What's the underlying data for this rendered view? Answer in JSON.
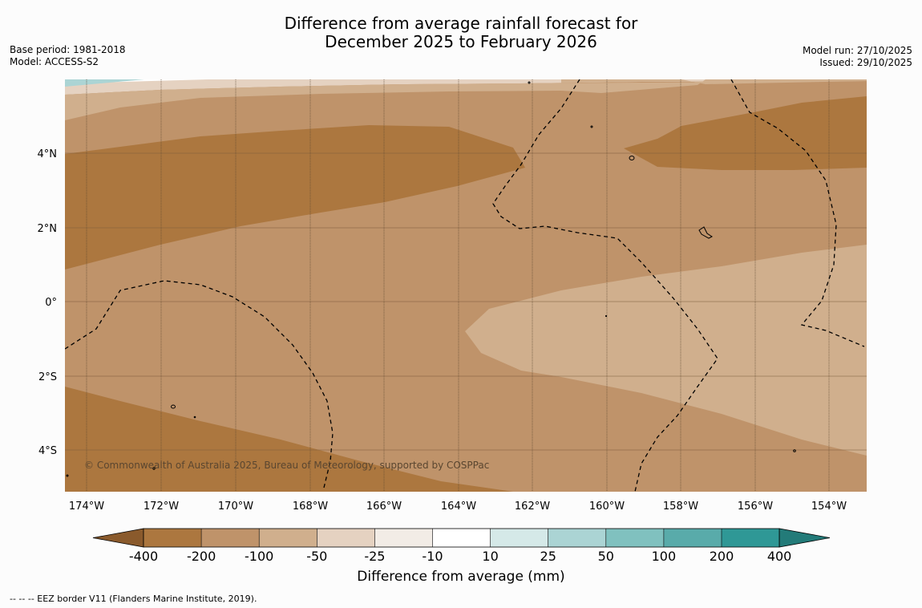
{
  "title": {
    "line1": "Difference from average rainfall forecast for",
    "line2": "December 2025 to February 2026"
  },
  "meta_left": {
    "base_period": "Base period: 1981-2018",
    "model": "Model: ACCESS-S2"
  },
  "meta_right": {
    "model_run": "Model run: 27/10/2025",
    "issued": "Issued: 29/10/2025"
  },
  "map": {
    "lon_labels": [
      "174°W",
      "172°W",
      "170°W",
      "168°W",
      "166°W",
      "164°W",
      "162°W",
      "160°W",
      "158°W",
      "156°W",
      "154°W"
    ],
    "lat_labels": [
      "4°N",
      "2°N",
      "0°",
      "2°S",
      "4°S"
    ],
    "copyright": "© Commonwealth of Australia 2025, Bureau of Meteorology, supported by COSPPac"
  },
  "colorbar": {
    "ticks": [
      "-400",
      "-200",
      "-100",
      "-50",
      "-25",
      "-10",
      "10",
      "25",
      "50",
      "100",
      "200",
      "400"
    ],
    "label": "Difference from average (mm)",
    "colors": {
      "extend_low": "#8a5a2c",
      "c1": "#ac773f",
      "c2": "#bf936a",
      "c3": "#d0af8d",
      "c4": "#e5d2c1",
      "c5": "#f2ece6",
      "c6": "#ffffff",
      "c7": "#d5e9e8",
      "c8": "#abd4d4",
      "c9": "#80c1bf",
      "c10": "#59abaa",
      "c11": "#2f9896",
      "extend_high": "#237b79"
    }
  },
  "footer": "--  --  -- EEZ border V11 (Flanders Marine Institute, 2019)."
}
